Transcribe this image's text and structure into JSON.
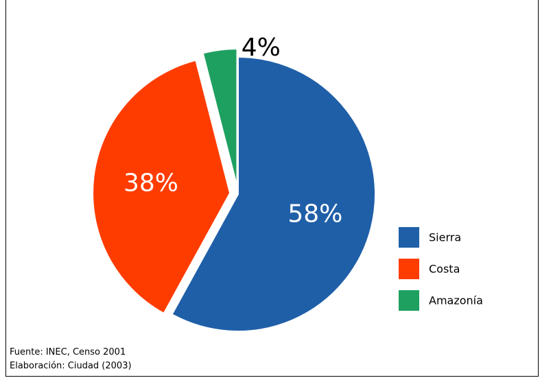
{
  "chart_data": {
    "type": "pie",
    "title": "",
    "slices": [
      {
        "label": "Sierra",
        "value": 58,
        "display": "58%",
        "color": "#1f5fa8",
        "explode": false
      },
      {
        "label": "Costa",
        "value": 38,
        "display": "38%",
        "color": "#ff3c00",
        "explode": true
      },
      {
        "label": "Amazonía",
        "value": 4,
        "display": "4%",
        "color": "#1ea060",
        "explode": true
      }
    ],
    "legend": {
      "position": "right",
      "items": [
        "Sierra",
        "Costa",
        "Amazonía"
      ]
    }
  },
  "source": {
    "line1": "Fuente: INEC, Censo 2001",
    "line2": "Elaboración: Ciudad (2003)"
  }
}
